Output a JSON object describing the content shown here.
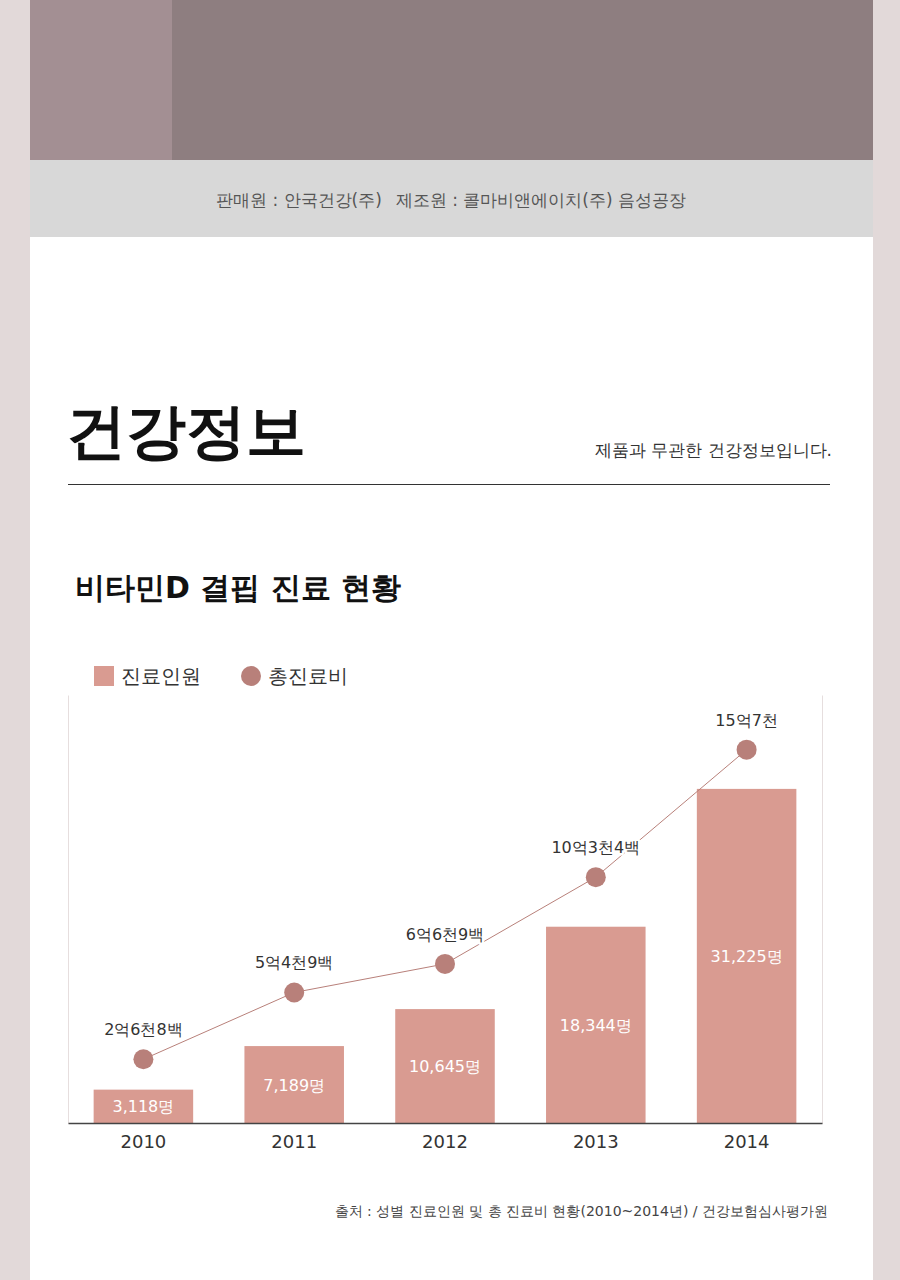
{
  "page": {
    "seller": "판매원 : 안국건강(주)",
    "maker": "제조원 : 콜마비앤에이치(주) 음성공장",
    "heading": "건강정보",
    "notice": "제품과 무관한 건강정보입니다."
  },
  "chart_data": {
    "type": "bar",
    "title": "비타민D 결핍 진료 현황",
    "categories": [
      "2010",
      "2011",
      "2012",
      "2013",
      "2014"
    ],
    "series": [
      {
        "name": "진료인원",
        "type": "bar",
        "color": "#d99b91",
        "values": [
          3118,
          7189,
          10645,
          18344,
          31225
        ],
        "value_labels": [
          "3,118명",
          "7,189명",
          "10,645명",
          "18,344명",
          "31,225명"
        ]
      },
      {
        "name": "총진료비",
        "type": "line",
        "axis": "y2",
        "color": "#b8807a",
        "marker": "circle",
        "values": [
          268000000,
          549000000,
          669000000,
          1034000000,
          1570000000
        ],
        "value_labels": [
          "2억6천8백",
          "5억4천9백",
          "6억6천9백",
          "10억3천4백",
          "15억7천"
        ]
      }
    ],
    "ylim": [
      0,
      40000
    ],
    "y2lim": [
      0,
      1800000000
    ],
    "data_labels": true,
    "tick_labels": "x",
    "legend": "top-left",
    "grid": false,
    "source": "출처 : 성별 진료인원 및 총 진료비 현황(2010~2014년) / 건강보험심사평가원"
  }
}
